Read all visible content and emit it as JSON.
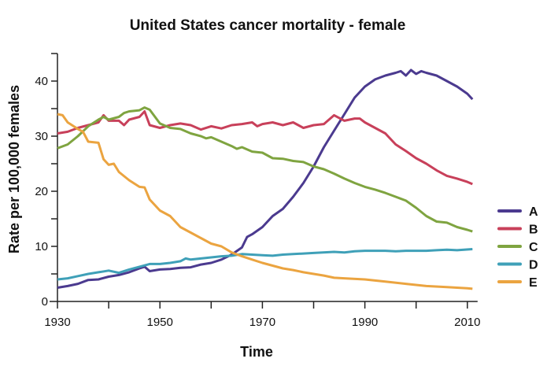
{
  "chart_data": {
    "type": "line",
    "title": "United States cancer mortality - female",
    "xlabel": "Time",
    "ylabel": "Rate per 100,000 females",
    "xlim": [
      1930,
      2012
    ],
    "ylim": [
      0,
      45
    ],
    "xticks": [
      1930,
      1950,
      1970,
      1990,
      2010
    ],
    "yticks": [
      0,
      10,
      20,
      30,
      40
    ],
    "grid": false,
    "legend": "right",
    "series": [
      {
        "name": "A",
        "color": "#4b3a8f",
        "x": [
          1930,
          1932,
          1934,
          1936,
          1938,
          1940,
          1942,
          1944,
          1946,
          1947,
          1948,
          1950,
          1952,
          1954,
          1956,
          1958,
          1960,
          1962,
          1964,
          1966,
          1967,
          1968,
          1970,
          1972,
          1974,
          1976,
          1978,
          1980,
          1982,
          1984,
          1986,
          1988,
          1990,
          1992,
          1994,
          1996,
          1997,
          1998,
          1999,
          2000,
          2001,
          2002,
          2004,
          2006,
          2008,
          2010,
          2011
        ],
        "y": [
          2.5,
          2.8,
          3.2,
          3.9,
          4.0,
          4.5,
          4.8,
          5.3,
          6.0,
          6.3,
          5.5,
          5.8,
          5.9,
          6.1,
          6.2,
          6.7,
          7.0,
          7.6,
          8.5,
          9.8,
          11.7,
          12.2,
          13.5,
          15.5,
          16.8,
          19.0,
          21.5,
          24.5,
          28.0,
          31.0,
          34.0,
          37.0,
          39.0,
          40.3,
          41.0,
          41.5,
          41.8,
          41.0,
          42.0,
          41.3,
          41.8,
          41.5,
          41.0,
          40.0,
          39.0,
          37.7,
          36.7
        ]
      },
      {
        "name": "B",
        "color": "#c8405a",
        "x": [
          1930,
          1932,
          1934,
          1936,
          1938,
          1939,
          1940,
          1942,
          1943,
          1944,
          1946,
          1947,
          1948,
          1950,
          1952,
          1954,
          1956,
          1958,
          1960,
          1962,
          1964,
          1966,
          1968,
          1969,
          1970,
          1972,
          1974,
          1976,
          1978,
          1980,
          1982,
          1984,
          1986,
          1988,
          1989,
          1990,
          1992,
          1994,
          1996,
          1998,
          2000,
          2002,
          2004,
          2006,
          2008,
          2010,
          2011
        ],
        "y": [
          30.5,
          30.8,
          31.5,
          32.0,
          32.5,
          33.8,
          32.8,
          32.8,
          32.0,
          33.0,
          33.5,
          34.5,
          32.0,
          31.5,
          32.0,
          32.3,
          32.0,
          31.2,
          31.8,
          31.4,
          32.0,
          32.2,
          32.5,
          31.8,
          32.2,
          32.5,
          32.0,
          32.5,
          31.5,
          32.0,
          32.2,
          33.8,
          32.8,
          33.2,
          33.2,
          32.5,
          31.5,
          30.5,
          28.5,
          27.3,
          26.0,
          25.0,
          23.8,
          22.8,
          22.3,
          21.7,
          21.3
        ]
      },
      {
        "name": "C",
        "color": "#7fa440",
        "x": [
          1930,
          1932,
          1934,
          1936,
          1938,
          1939,
          1940,
          1942,
          1943,
          1944,
          1946,
          1947,
          1948,
          1950,
          1952,
          1954,
          1956,
          1958,
          1959,
          1960,
          1962,
          1964,
          1965,
          1966,
          1968,
          1970,
          1972,
          1974,
          1976,
          1978,
          1980,
          1982,
          1984,
          1986,
          1988,
          1990,
          1992,
          1994,
          1996,
          1998,
          2000,
          2002,
          2004,
          2006,
          2008,
          2010,
          2011
        ],
        "y": [
          27.8,
          28.5,
          30.0,
          31.8,
          33.0,
          33.5,
          33.0,
          33.5,
          34.2,
          34.5,
          34.7,
          35.2,
          34.8,
          32.3,
          31.5,
          31.3,
          30.5,
          30.0,
          29.6,
          29.8,
          29.0,
          28.2,
          27.7,
          28.0,
          27.2,
          27.0,
          26.0,
          25.9,
          25.5,
          25.3,
          24.5,
          24.0,
          23.2,
          22.3,
          21.5,
          20.8,
          20.3,
          19.7,
          19.0,
          18.3,
          17.0,
          15.5,
          14.5,
          14.3,
          13.5,
          13.0,
          12.7
        ]
      },
      {
        "name": "D",
        "color": "#3fa0b8",
        "x": [
          1930,
          1932,
          1934,
          1936,
          1938,
          1940,
          1942,
          1944,
          1946,
          1948,
          1950,
          1952,
          1954,
          1955,
          1956,
          1958,
          1960,
          1962,
          1964,
          1966,
          1968,
          1970,
          1972,
          1974,
          1976,
          1978,
          1980,
          1984,
          1986,
          1988,
          1990,
          1994,
          1996,
          1998,
          2002,
          2004,
          2006,
          2008,
          2011
        ],
        "y": [
          4.0,
          4.2,
          4.6,
          5.0,
          5.3,
          5.6,
          5.2,
          5.8,
          6.3,
          6.8,
          6.8,
          7.0,
          7.3,
          7.8,
          7.6,
          7.8,
          8.0,
          8.2,
          8.3,
          8.6,
          8.5,
          8.4,
          8.3,
          8.5,
          8.6,
          8.7,
          8.8,
          9.0,
          8.9,
          9.1,
          9.2,
          9.2,
          9.1,
          9.2,
          9.2,
          9.3,
          9.4,
          9.3,
          9.5
        ]
      },
      {
        "name": "E",
        "color": "#eba440",
        "x": [
          1930,
          1931,
          1932,
          1934,
          1935,
          1936,
          1938,
          1939,
          1940,
          1941,
          1942,
          1944,
          1946,
          1947,
          1948,
          1950,
          1952,
          1954,
          1956,
          1958,
          1960,
          1962,
          1964,
          1966,
          1968,
          1970,
          1972,
          1974,
          1976,
          1978,
          1980,
          1982,
          1984,
          1986,
          1990,
          1994,
          1998,
          2002,
          2006,
          2010,
          2011
        ],
        "y": [
          34.0,
          33.8,
          32.5,
          31.3,
          30.8,
          29.0,
          28.8,
          25.8,
          24.8,
          25.0,
          23.5,
          22.0,
          20.8,
          20.7,
          18.5,
          16.5,
          15.5,
          13.5,
          12.5,
          11.5,
          10.5,
          10.0,
          8.9,
          8.2,
          7.6,
          7.0,
          6.5,
          6.0,
          5.7,
          5.3,
          5.0,
          4.7,
          4.3,
          4.2,
          4.0,
          3.6,
          3.2,
          2.8,
          2.6,
          2.4,
          2.3
        ]
      }
    ]
  }
}
